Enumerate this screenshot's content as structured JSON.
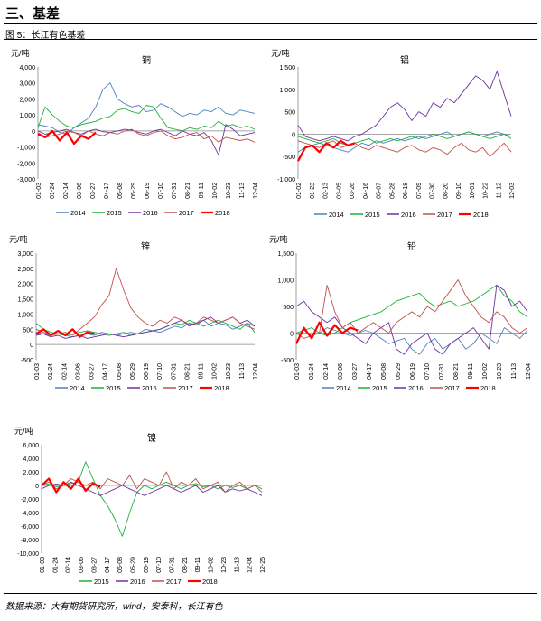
{
  "section_title": "三、基差",
  "figure_caption": "图 5：长江有色基差",
  "source_note": "数据来源：大有期货研究所，wind，安泰科，长江有色",
  "colors": {
    "2014": "#4F81BD",
    "2015": "#1BB339",
    "2016": "#7030A0",
    "2017": "#C0504D",
    "2018": "#FF0000"
  },
  "chart_data": [
    {
      "type": "line",
      "title": "铜",
      "unit": "元/吨",
      "ylim": [
        -3000,
        4000
      ],
      "yticks": [
        -3000,
        -2000,
        -1000,
        0,
        1000,
        2000,
        3000,
        4000
      ],
      "ytick_labels": [
        "-3,000",
        "-2,000",
        "-1,000",
        "0",
        "1,000",
        "2,000",
        "3,000",
        "4,000"
      ],
      "xticks": [
        "01-03",
        "01-24",
        "02-14",
        "03-06",
        "03-27",
        "04-17",
        "05-08",
        "05-29",
        "06-19",
        "07-10",
        "07-31",
        "08-21",
        "09-11",
        "10-02",
        "10-23",
        "11-13",
        "12-04"
      ],
      "legend": [
        "2014",
        "2015",
        "2016",
        "2017",
        "2018"
      ],
      "series": [
        {
          "name": "2014",
          "values": [
            400,
            300,
            200,
            -100,
            -200,
            200,
            500,
            800,
            1500,
            2600,
            3000,
            2000,
            1700,
            1500,
            1600,
            1200,
            1300,
            1700,
            1500,
            1200,
            900,
            1100,
            1000,
            1300,
            1200,
            1500,
            1100,
            1000,
            1300,
            1200,
            1100
          ]
        },
        {
          "name": "2015",
          "values": [
            200,
            1500,
            1000,
            600,
            300,
            200,
            400,
            500,
            600,
            800,
            900,
            1300,
            1400,
            1200,
            1100,
            1600,
            1500,
            800,
            200,
            100,
            0,
            200,
            100,
            300,
            200,
            600,
            300,
            400,
            200,
            300,
            100
          ]
        },
        {
          "name": "2016",
          "values": [
            0,
            -200,
            -100,
            0,
            100,
            -100,
            -200,
            0,
            100,
            -50,
            -100,
            0,
            100,
            50,
            -100,
            -200,
            0,
            100,
            -100,
            -300,
            0,
            -200,
            -300,
            -100,
            -600,
            -1500,
            400,
            100,
            -300,
            -200,
            -100
          ]
        },
        {
          "name": "2017",
          "values": [
            -100,
            -400,
            -300,
            -200,
            0,
            -100,
            -300,
            0,
            -200,
            -300,
            -100,
            -200,
            0,
            100,
            -200,
            -300,
            -100,
            0,
            -300,
            -500,
            -400,
            -200,
            -100,
            -500,
            -300,
            -700,
            -400,
            -500,
            -600,
            -500,
            -700
          ]
        },
        {
          "name": "2018",
          "values": [
            -200,
            -400,
            0,
            -600,
            -100,
            -800,
            -300,
            -500,
            -100
          ]
        }
      ]
    },
    {
      "type": "line",
      "title": "铝",
      "unit": "元/吨",
      "ylim": [
        -1000,
        1500
      ],
      "yticks": [
        -1000,
        -500,
        0,
        500,
        1000,
        1500
      ],
      "ytick_labels": [
        "-1,000",
        "-500",
        "0",
        "500",
        "1,000",
        "1,500"
      ],
      "xticks": [
        "01-02",
        "01-23",
        "02-13",
        "03-05",
        "03-26",
        "04-16",
        "05-07",
        "05-28",
        "06-18",
        "07-09",
        "07-30",
        "08-20",
        "09-10",
        "10-01",
        "10-22",
        "11-12",
        "12-03"
      ],
      "legend": [
        "2014",
        "2015",
        "2016",
        "2017",
        "2018"
      ],
      "series": [
        {
          "name": "2014",
          "values": [
            -400,
            -300,
            -250,
            -200,
            -250,
            -300,
            -350,
            -400,
            -300,
            -200,
            -250,
            -150,
            -200,
            -150,
            -100,
            -150,
            -100,
            -50,
            -100,
            -50,
            0,
            50,
            -50,
            0,
            50,
            0,
            -50,
            0,
            50,
            0,
            -50
          ]
        },
        {
          "name": "2015",
          "values": [
            -50,
            -100,
            -150,
            -200,
            -150,
            -100,
            -200,
            -250,
            -200,
            -150,
            -100,
            -200,
            -150,
            -100,
            -150,
            -100,
            -50,
            -100,
            -50,
            0,
            -50,
            -100,
            -50,
            0,
            50,
            0,
            -50,
            -100,
            -50,
            0,
            -100
          ]
        },
        {
          "name": "2016",
          "values": [
            200,
            -50,
            -100,
            -150,
            -100,
            -50,
            -100,
            -150,
            -50,
            0,
            100,
            200,
            400,
            600,
            700,
            550,
            300,
            500,
            400,
            700,
            600,
            800,
            700,
            900,
            1100,
            1300,
            1200,
            1000,
            1400,
            900,
            400
          ]
        },
        {
          "name": "2017",
          "values": [
            -150,
            -200,
            -250,
            -300,
            -200,
            -150,
            -300,
            -250,
            -200,
            -300,
            -350,
            -250,
            -300,
            -350,
            -400,
            -300,
            -250,
            -350,
            -400,
            -300,
            -350,
            -450,
            -300,
            -200,
            -350,
            -400,
            -300,
            -500,
            -350,
            -200,
            -400
          ]
        },
        {
          "name": "2018",
          "values": [
            -600,
            -300,
            -250,
            -400,
            -200,
            -300,
            -150,
            -250,
            -200
          ]
        }
      ]
    },
    {
      "type": "line",
      "title": "锌",
      "unit": "元/吨",
      "ylim": [
        -500,
        3000
      ],
      "yticks": [
        -500,
        0,
        500,
        1000,
        1500,
        2000,
        2500,
        3000
      ],
      "ytick_labels": [
        "-500",
        "0",
        "500",
        "1,000",
        "1,500",
        "2,000",
        "2,500",
        "3,000"
      ],
      "xticks": [
        "01-03",
        "01-24",
        "02-14",
        "03-06",
        "03-27",
        "04-17",
        "05-08",
        "05-29",
        "06-19",
        "07-10",
        "07-31",
        "08-21",
        "09-11",
        "10-02",
        "10-23",
        "11-13",
        "12-04"
      ],
      "legend": [
        "2014",
        "2015",
        "2016",
        "2017",
        "2018"
      ],
      "series": [
        {
          "name": "2014",
          "values": [
            400,
            350,
            300,
            350,
            300,
            250,
            300,
            350,
            300,
            400,
            350,
            300,
            350,
            400,
            350,
            500,
            450,
            400,
            500,
            600,
            550,
            700,
            650,
            800,
            600,
            700,
            650,
            500,
            600,
            700,
            600
          ]
        },
        {
          "name": "2015",
          "values": [
            700,
            500,
            400,
            350,
            300,
            350,
            400,
            450,
            400,
            350,
            300,
            350,
            400,
            300,
            350,
            400,
            450,
            500,
            600,
            700,
            650,
            800,
            700,
            600,
            700,
            800,
            700,
            600,
            500,
            700,
            400
          ]
        },
        {
          "name": "2016",
          "values": [
            300,
            350,
            250,
            300,
            200,
            250,
            300,
            200,
            250,
            300,
            350,
            300,
            250,
            300,
            350,
            400,
            450,
            500,
            600,
            700,
            800,
            650,
            700,
            800,
            900,
            700,
            800,
            900,
            700,
            800,
            600
          ]
        },
        {
          "name": "2017",
          "values": [
            500,
            400,
            300,
            350,
            400,
            300,
            500,
            700,
            900,
            1300,
            1600,
            2500,
            1800,
            1200,
            900,
            700,
            600,
            800,
            700,
            900,
            800,
            600,
            700,
            900,
            800,
            700,
            800,
            900,
            700,
            600,
            500
          ]
        },
        {
          "name": "2018",
          "values": [
            350,
            500,
            300,
            450,
            300,
            500,
            250,
            400,
            350
          ]
        }
      ]
    },
    {
      "type": "line",
      "title": "铅",
      "unit": "元/吨",
      "ylim": [
        -500,
        1500
      ],
      "yticks": [
        -500,
        0,
        500,
        1000,
        1500
      ],
      "ytick_labels": [
        "-500",
        "0",
        "500",
        "1,000",
        "1,500"
      ],
      "xticks": [
        "01-03",
        "01-24",
        "02-14",
        "03-06",
        "03-27",
        "04-17",
        "05-08",
        "05-29",
        "06-19",
        "07-10",
        "07-31",
        "08-21",
        "09-11",
        "10-02",
        "10-23",
        "11-13",
        "12-04"
      ],
      "legend": [
        "2014",
        "2015",
        "2016",
        "2017",
        "2018"
      ],
      "series": [
        {
          "name": "2014",
          "values": [
            0,
            50,
            -50,
            0,
            100,
            50,
            0,
            -50,
            0,
            50,
            0,
            -100,
            -200,
            -150,
            -100,
            -300,
            -400,
            -200,
            -100,
            -300,
            -200,
            -100,
            -300,
            -200,
            0,
            -100,
            -200,
            100,
            0,
            -100,
            50
          ]
        },
        {
          "name": "2015",
          "values": [
            0,
            50,
            100,
            0,
            -50,
            0,
            100,
            200,
            250,
            300,
            350,
            400,
            500,
            600,
            650,
            700,
            750,
            600,
            500,
            550,
            600,
            500,
            550,
            600,
            700,
            800,
            900,
            700,
            600,
            400,
            300
          ]
        },
        {
          "name": "2016",
          "values": [
            500,
            600,
            400,
            300,
            200,
            300,
            100,
            0,
            -100,
            -200,
            0,
            100,
            200,
            -300,
            -400,
            -200,
            -100,
            0,
            -300,
            -400,
            -200,
            -100,
            0,
            100,
            -100,
            -300,
            900,
            800,
            500,
            600,
            400
          ]
        },
        {
          "name": "2017",
          "values": [
            0,
            -100,
            -50,
            0,
            900,
            400,
            100,
            200,
            0,
            100,
            200,
            100,
            0,
            200,
            300,
            400,
            300,
            500,
            400,
            600,
            800,
            1000,
            700,
            500,
            300,
            200,
            400,
            300,
            100,
            0,
            100
          ]
        },
        {
          "name": "2018",
          "values": [
            -200,
            100,
            -100,
            200,
            -50,
            150,
            0,
            100,
            50
          ]
        }
      ]
    },
    {
      "type": "line",
      "title": "镍",
      "unit": "元/吨",
      "ylim": [
        -10000,
        6000
      ],
      "yticks": [
        -10000,
        -8000,
        -6000,
        -4000,
        -2000,
        0,
        2000,
        4000,
        6000
      ],
      "ytick_labels": [
        "-10,000",
        "-8,000",
        "-6,000",
        "-4,000",
        "-2,000",
        "0",
        "2,000",
        "4,000",
        "6,000"
      ],
      "xticks": [
        "01-03",
        "01-24",
        "02-14",
        "03-06",
        "03-27",
        "04-17",
        "05-08",
        "05-29",
        "06-19",
        "07-10",
        "07-31",
        "08-21",
        "09-11",
        "10-02",
        "10-23",
        "11-13",
        "12-04",
        "12-25"
      ],
      "legend": [
        "2015",
        "2016",
        "2017",
        "2018"
      ],
      "series": [
        {
          "name": "2015",
          "values": [
            0,
            200,
            -200,
            0,
            300,
            500,
            3500,
            1000,
            -1500,
            -3000,
            -5000,
            -7500,
            -4000,
            -1000,
            0,
            -500,
            0,
            500,
            0,
            -500,
            0,
            300,
            -200,
            0,
            -500,
            0,
            -300,
            0,
            -500,
            0,
            -1000
          ]
        },
        {
          "name": "2016",
          "values": [
            -500,
            0,
            200,
            0,
            500,
            0,
            -500,
            -1000,
            -1500,
            -1000,
            -500,
            0,
            -500,
            -1000,
            -1500,
            -1000,
            -500,
            0,
            -500,
            -1000,
            -500,
            0,
            -1000,
            -500,
            0,
            -1000,
            -500,
            -800,
            -500,
            -1000,
            -1500
          ]
        },
        {
          "name": "2017",
          "values": [
            0,
            500,
            -500,
            0,
            1000,
            500,
            0,
            500,
            -500,
            1000,
            500,
            0,
            1500,
            -500,
            1000,
            500,
            0,
            2000,
            -500,
            500,
            0,
            1000,
            -500,
            0,
            500,
            -1000,
            0,
            500,
            -500,
            0,
            -500
          ]
        },
        {
          "name": "2018",
          "values": [
            0,
            1000,
            -1000,
            500,
            -500,
            1000,
            -800,
            300,
            -200
          ]
        }
      ]
    }
  ]
}
